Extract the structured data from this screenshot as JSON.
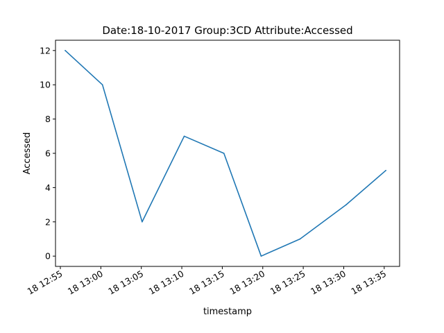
{
  "chart_data": {
    "type": "line",
    "title": "Date:18-10-2017  Group:3CD Attribute:Accessed",
    "xlabel": "timestamp",
    "ylabel": "Accessed",
    "x_ticks": [
      {
        "label": "18 12:55",
        "minute": 775
      },
      {
        "label": "18 13:00",
        "minute": 780
      },
      {
        "label": "18 13:05",
        "minute": 785
      },
      {
        "label": "18 13:10",
        "minute": 790
      },
      {
        "label": "18 13:15",
        "minute": 795
      },
      {
        "label": "18 13:20",
        "minute": 800
      },
      {
        "label": "18 13:25",
        "minute": 805
      },
      {
        "label": "18 13:30",
        "minute": 810
      },
      {
        "label": "18 13:35",
        "minute": 815
      }
    ],
    "y_ticks": [
      0,
      2,
      4,
      6,
      8,
      10,
      12
    ],
    "xlim_minute": [
      774.4,
      816.9
    ],
    "ylim": [
      -0.6,
      12.6
    ],
    "grid": false,
    "series": [
      {
        "color": "#1f77b4",
        "points": [
          {
            "minute": 775.6,
            "value": 12
          },
          {
            "minute": 780.2,
            "value": 10
          },
          {
            "minute": 785.1,
            "value": 2
          },
          {
            "minute": 790.3,
            "value": 7
          },
          {
            "minute": 795.2,
            "value": 6
          },
          {
            "minute": 799.8,
            "value": 0
          },
          {
            "minute": 804.6,
            "value": 1
          },
          {
            "minute": 810.3,
            "value": 3
          },
          {
            "minute": 815.2,
            "value": 5
          }
        ]
      }
    ]
  }
}
